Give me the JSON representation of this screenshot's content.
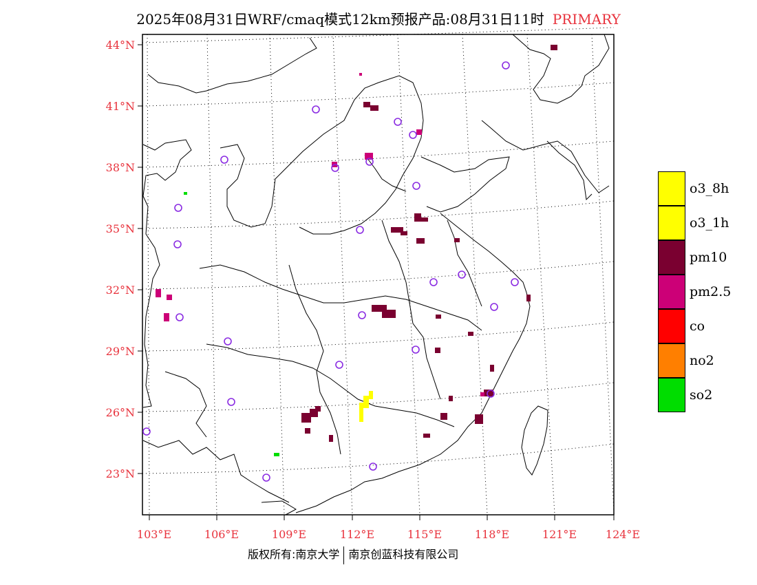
{
  "title": {
    "main": "2025年08月31日WRF/cmaq模式12km预报产品:08月31日11时",
    "pollutant": "PRIMARY"
  },
  "map": {
    "lat_labels": [
      "44°N",
      "41°N",
      "38°N",
      "35°N",
      "32°N",
      "29°N",
      "26°N",
      "23°N"
    ],
    "lon_labels": [
      "103°E",
      "106°E",
      "109°E",
      "112°E",
      "115°E",
      "118°E",
      "121°E",
      "124°E"
    ],
    "frame_color": "#000000",
    "grid_color": "#000000",
    "station_marker_color": "#8a2be2"
  },
  "legend": {
    "items": [
      {
        "label": "o3_8h",
        "color": "#ffff00"
      },
      {
        "label": "o3_1h",
        "color": "#ffff00"
      },
      {
        "label": "pm10",
        "color": "#7a0030"
      },
      {
        "label": "pm2.5",
        "color": "#cc0077"
      },
      {
        "label": "co",
        "color": "#ff0000"
      },
      {
        "label": "no2",
        "color": "#ff7f00"
      },
      {
        "label": "so2",
        "color": "#00dd00"
      }
    ]
  },
  "footer": {
    "left": "版权所有:南京大学",
    "right": "南京创蓝科技有限公司"
  }
}
